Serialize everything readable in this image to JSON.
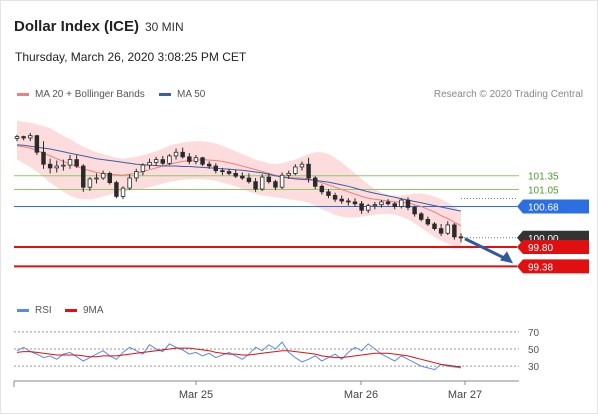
{
  "header": {
    "title": "Dollar Index (ICE)",
    "interval": "30 MIN",
    "datetime": "Thursday, March 26, 2020 3:08:25 PM CET"
  },
  "legend": {
    "ma20": "MA 20 + Bollinger Bands",
    "ma50": "MA 50",
    "rsi": "RSI",
    "ma9": "9MA",
    "research": "Research © 2020 Trading Central"
  },
  "colors": {
    "candle": "#2a2a2a",
    "ma20": "#ee7f7f",
    "band": "#fbd6d6",
    "ma50": "#3e5fa8",
    "resistance": "#8ec86a",
    "pivot": "#2c6fe0",
    "support": "#e01010",
    "last": "#333333",
    "arrow": "#2d5aa0",
    "rsi": "#5b8be0",
    "rsi_ma": "#e01010"
  },
  "chart_data": [
    {
      "type": "candlestick",
      "x_ticks": [
        "Mar 25",
        "Mar 26",
        "Mar 27"
      ],
      "y_range": [
        98.8,
        102.8
      ],
      "levels": [
        {
          "label": "101.35",
          "value": 101.35,
          "kind": "resistance"
        },
        {
          "label": "101.05",
          "value": 101.05,
          "kind": "resistance"
        },
        {
          "label": "100.68",
          "value": 100.68,
          "kind": "pivot"
        },
        {
          "label": "100.00",
          "value": 100.0,
          "kind": "last"
        },
        {
          "label": "99.80",
          "value": 99.8,
          "kind": "support"
        },
        {
          "label": "99.38",
          "value": 99.38,
          "kind": "support"
        }
      ],
      "candles": [
        [
          102.16,
          102.24,
          102.1,
          102.2
        ],
        [
          102.2,
          102.22,
          102.12,
          102.17
        ],
        [
          102.17,
          102.28,
          102.1,
          102.22
        ],
        [
          102.22,
          102.24,
          101.8,
          101.86
        ],
        [
          101.86,
          102.1,
          101.5,
          101.6
        ],
        [
          101.6,
          101.72,
          101.4,
          101.52
        ],
        [
          101.52,
          101.68,
          101.42,
          101.56
        ],
        [
          101.56,
          101.7,
          101.46,
          101.58
        ],
        [
          101.58,
          101.8,
          101.5,
          101.7
        ],
        [
          101.7,
          101.8,
          101.52,
          101.56
        ],
        [
          101.56,
          101.6,
          101.0,
          101.1
        ],
        [
          101.1,
          101.32,
          101.02,
          101.28
        ],
        [
          101.28,
          101.4,
          101.18,
          101.3
        ],
        [
          101.3,
          101.46,
          101.26,
          101.4
        ],
        [
          101.4,
          101.44,
          101.16,
          101.2
        ],
        [
          101.2,
          101.24,
          100.86,
          100.9
        ],
        [
          100.9,
          101.12,
          100.84,
          101.08
        ],
        [
          101.08,
          101.38,
          101.04,
          101.3
        ],
        [
          101.3,
          101.5,
          101.22,
          101.44
        ],
        [
          101.44,
          101.62,
          101.36,
          101.58
        ],
        [
          101.58,
          101.72,
          101.5,
          101.64
        ],
        [
          101.64,
          101.76,
          101.56,
          101.7
        ],
        [
          101.7,
          101.78,
          101.58,
          101.62
        ],
        [
          101.62,
          101.82,
          101.58,
          101.78
        ],
        [
          101.78,
          101.94,
          101.7,
          101.86
        ],
        [
          101.86,
          101.96,
          101.72,
          101.76
        ],
        [
          101.76,
          101.84,
          101.6,
          101.66
        ],
        [
          101.66,
          101.8,
          101.6,
          101.74
        ],
        [
          101.74,
          101.76,
          101.56,
          101.6
        ],
        [
          101.6,
          101.66,
          101.5,
          101.56
        ],
        [
          101.56,
          101.62,
          101.4,
          101.46
        ],
        [
          101.46,
          101.52,
          101.36,
          101.44
        ],
        [
          101.44,
          101.5,
          101.36,
          101.4
        ],
        [
          101.4,
          101.48,
          101.3,
          101.34
        ],
        [
          101.34,
          101.42,
          101.26,
          101.3
        ],
        [
          101.3,
          101.4,
          101.18,
          101.22
        ],
        [
          101.22,
          101.3,
          101.0,
          101.06
        ],
        [
          101.06,
          101.38,
          101.02,
          101.32
        ],
        [
          101.32,
          101.4,
          101.18,
          101.22
        ],
        [
          101.22,
          101.26,
          101.04,
          101.1
        ],
        [
          101.1,
          101.42,
          101.06,
          101.36
        ],
        [
          101.36,
          101.46,
          101.28,
          101.4
        ],
        [
          101.4,
          101.6,
          101.36,
          101.54
        ],
        [
          101.54,
          101.66,
          101.46,
          101.6
        ],
        [
          101.6,
          101.74,
          101.2,
          101.3
        ],
        [
          101.3,
          101.34,
          101.06,
          101.12
        ],
        [
          101.12,
          101.16,
          100.94,
          101.0
        ],
        [
          101.0,
          101.06,
          100.86,
          100.92
        ],
        [
          100.92,
          100.98,
          100.78,
          100.84
        ],
        [
          100.84,
          100.92,
          100.74,
          100.8
        ],
        [
          100.8,
          100.86,
          100.7,
          100.78
        ],
        [
          100.78,
          100.86,
          100.68,
          100.74
        ],
        [
          100.74,
          100.8,
          100.52,
          100.6
        ],
        [
          100.6,
          100.74,
          100.54,
          100.7
        ],
        [
          100.7,
          100.78,
          100.62,
          100.72
        ],
        [
          100.72,
          100.82,
          100.66,
          100.78
        ],
        [
          100.78,
          100.84,
          100.7,
          100.74
        ],
        [
          100.74,
          100.78,
          100.62,
          100.68
        ],
        [
          100.68,
          100.86,
          100.64,
          100.82
        ],
        [
          100.82,
          100.88,
          100.6,
          100.66
        ],
        [
          100.66,
          100.7,
          100.46,
          100.52
        ],
        [
          100.52,
          100.56,
          100.36,
          100.4
        ],
        [
          100.4,
          100.46,
          100.26,
          100.3
        ],
        [
          100.3,
          100.34,
          100.16,
          100.2
        ],
        [
          100.2,
          100.3,
          100.04,
          100.1
        ],
        [
          100.1,
          100.36,
          100.06,
          100.28
        ],
        [
          100.28,
          100.32,
          99.96,
          100.02
        ],
        [
          100.02,
          100.1,
          99.9,
          100.0
        ]
      ],
      "ma20": [
        102.0,
        101.98,
        101.95,
        101.9,
        101.84,
        101.78,
        101.72,
        101.66,
        101.6,
        101.55,
        101.5,
        101.46,
        101.42,
        101.4,
        101.38,
        101.37,
        101.36,
        101.38,
        101.4,
        101.44,
        101.48,
        101.52,
        101.56,
        101.6,
        101.63,
        101.66,
        101.68,
        101.69,
        101.7,
        101.69,
        101.68,
        101.66,
        101.63,
        101.6,
        101.56,
        101.52,
        101.48,
        101.44,
        101.4,
        101.36,
        101.33,
        101.31,
        101.3,
        101.3,
        101.28,
        101.24,
        101.2,
        101.15,
        101.1,
        101.05,
        101.0,
        100.95,
        100.9,
        100.86,
        100.84,
        100.82,
        100.8,
        100.78,
        100.77,
        100.76,
        100.72,
        100.68,
        100.62,
        100.56,
        100.48,
        100.42,
        100.34,
        100.26
      ],
      "band_upper": [
        102.55,
        102.52,
        102.5,
        102.47,
        102.43,
        102.38,
        102.3,
        102.22,
        102.14,
        102.06,
        101.98,
        101.92,
        101.86,
        101.82,
        101.78,
        101.74,
        101.72,
        101.74,
        101.76,
        101.8,
        101.84,
        101.88,
        101.94,
        102.0,
        102.04,
        102.07,
        102.09,
        102.1,
        102.1,
        102.08,
        102.05,
        102.0,
        101.94,
        101.88,
        101.82,
        101.76,
        101.7,
        101.66,
        101.62,
        101.6,
        101.62,
        101.66,
        101.7,
        101.76,
        101.82,
        101.86,
        101.86,
        101.82,
        101.74,
        101.64,
        101.52,
        101.4,
        101.28,
        101.16,
        101.06,
        100.98,
        100.94,
        100.92,
        100.92,
        100.94,
        100.96,
        100.96,
        100.94,
        100.9,
        100.84,
        100.76,
        100.68,
        100.58
      ],
      "band_lower": [
        101.7,
        101.62,
        101.54,
        101.44,
        101.32,
        101.2,
        101.1,
        101.0,
        100.92,
        100.86,
        100.84,
        100.84,
        100.86,
        100.9,
        100.94,
        100.98,
        101.0,
        101.02,
        101.04,
        101.06,
        101.1,
        101.14,
        101.18,
        101.22,
        101.24,
        101.26,
        101.27,
        101.28,
        101.27,
        101.26,
        101.24,
        101.2,
        101.16,
        101.12,
        101.06,
        101.0,
        100.96,
        100.92,
        100.9,
        100.88,
        100.86,
        100.84,
        100.82,
        100.8,
        100.76,
        100.7,
        100.62,
        100.56,
        100.5,
        100.46,
        100.44,
        100.44,
        100.46,
        100.48,
        100.5,
        100.52,
        100.52,
        100.5,
        100.46,
        100.4,
        100.32,
        100.22,
        100.12,
        100.02,
        99.94,
        99.88,
        99.82,
        99.78
      ],
      "ma50": [
        102.02,
        102.01,
        101.99,
        101.97,
        101.95,
        101.93,
        101.9,
        101.87,
        101.84,
        101.81,
        101.78,
        101.75,
        101.72,
        101.7,
        101.68,
        101.66,
        101.64,
        101.62,
        101.6,
        101.59,
        101.58,
        101.57,
        101.56,
        101.56,
        101.56,
        101.55,
        101.55,
        101.54,
        101.53,
        101.52,
        101.51,
        101.5,
        101.49,
        101.48,
        101.47,
        101.45,
        101.43,
        101.41,
        101.38,
        101.35,
        101.32,
        101.3,
        101.28,
        101.27,
        101.26,
        101.25,
        101.23,
        101.21,
        101.18,
        101.15,
        101.12,
        101.08,
        101.04,
        101.0,
        100.97,
        100.94,
        100.91,
        100.88,
        100.85,
        100.82,
        100.79,
        100.76,
        100.73,
        100.7,
        100.67,
        100.64,
        100.61,
        100.58
      ],
      "projection": {
        "from": 99.98,
        "to": 99.38
      }
    },
    {
      "type": "line",
      "title": "RSI",
      "y_ticks": [
        70,
        50,
        30
      ],
      "y_range": [
        15,
        85
      ],
      "series": [
        {
          "name": "RSI",
          "values": [
            48,
            52,
            47,
            44,
            40,
            42,
            38,
            44,
            46,
            41,
            36,
            40,
            44,
            48,
            42,
            38,
            46,
            52,
            48,
            44,
            55,
            50,
            47,
            56,
            52,
            49,
            44,
            46,
            42,
            45,
            40,
            43,
            46,
            42,
            38,
            44,
            52,
            48,
            55,
            50,
            58,
            46,
            40,
            35,
            38,
            42,
            36,
            40,
            44,
            38,
            46,
            52,
            48,
            56,
            50,
            44,
            40,
            36,
            42,
            38,
            34,
            30,
            28,
            26,
            32,
            30,
            29,
            28
          ]
        },
        {
          "name": "9MA",
          "values": [
            46,
            47,
            47,
            46,
            45,
            44,
            43,
            43,
            43,
            43,
            42,
            41,
            41,
            42,
            42,
            42,
            43,
            44,
            45,
            46,
            47,
            48,
            49,
            50,
            51,
            51,
            51,
            50,
            49,
            48,
            46,
            45,
            44,
            44,
            43,
            43,
            44,
            45,
            46,
            47,
            48,
            48,
            47,
            46,
            45,
            44,
            42,
            41,
            40,
            40,
            41,
            42,
            43,
            44,
            45,
            45,
            45,
            44,
            43,
            42,
            40,
            38,
            36,
            34,
            32,
            31,
            30,
            29
          ]
        }
      ]
    }
  ]
}
